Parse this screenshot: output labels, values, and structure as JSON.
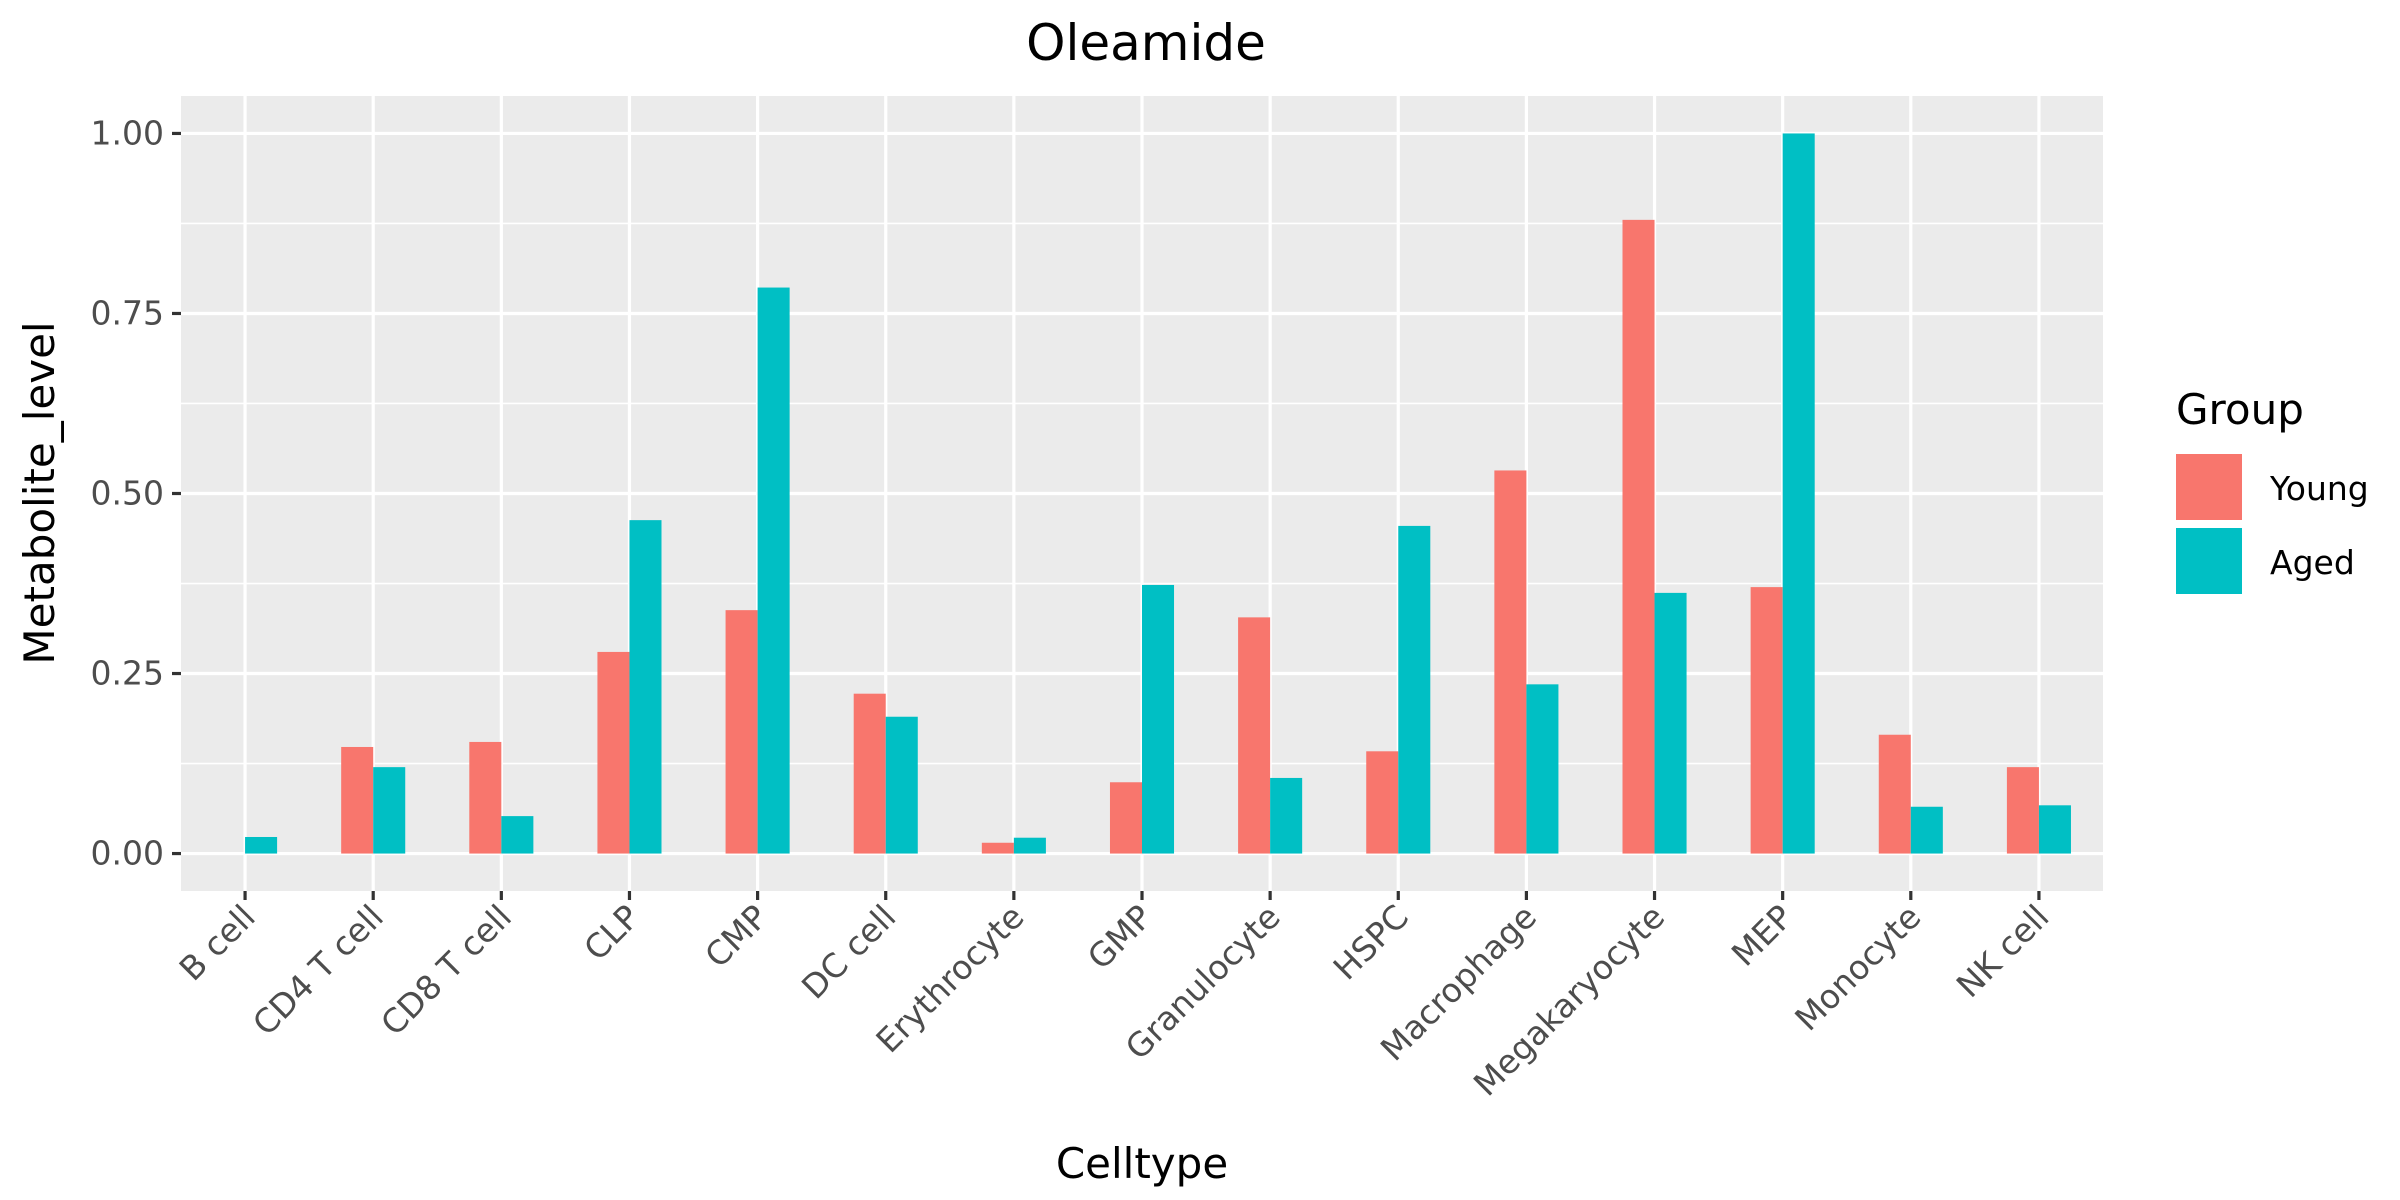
{
  "chart_data": {
    "type": "bar",
    "title": "Oleamide",
    "xlabel": "Celltype",
    "ylabel": "Metabolite_level",
    "categories": [
      "B cell",
      "CD4 T cell",
      "CD8 T cell",
      "CLP",
      "CMP",
      "DC cell",
      "Erythrocyte",
      "GMP",
      "Granulocyte",
      "HSPC",
      "Macrophage",
      "Megakaryocyte",
      "MEP",
      "Monocyte",
      "NK cell"
    ],
    "series": [
      {
        "name": "Young",
        "color": "#F8766D",
        "values": [
          0.0,
          0.148,
          0.155,
          0.28,
          0.338,
          0.222,
          0.015,
          0.099,
          0.328,
          0.142,
          0.532,
          0.88,
          0.37,
          0.165,
          0.12
        ]
      },
      {
        "name": "Aged",
        "color": "#00BFC4",
        "values": [
          0.023,
          0.12,
          0.052,
          0.463,
          0.786,
          0.19,
          0.022,
          0.373,
          0.105,
          0.455,
          0.235,
          0.362,
          1.0,
          0.065,
          0.067
        ]
      }
    ],
    "ylim": [
      -0.052,
      1.052
    ],
    "yticks": [
      0.0,
      0.25,
      0.5,
      0.75,
      1.0
    ],
    "ytick_labels": [
      "0.00",
      "0.25",
      "0.50",
      "0.75",
      "1.00"
    ],
    "grid": true,
    "legend": {
      "title": "Group",
      "position": "right"
    },
    "colors": {
      "panel": "#EBEBEB",
      "grid": "#FFFFFF",
      "tick_text": "#4D4D4D",
      "tick_mark": "#333333"
    }
  }
}
